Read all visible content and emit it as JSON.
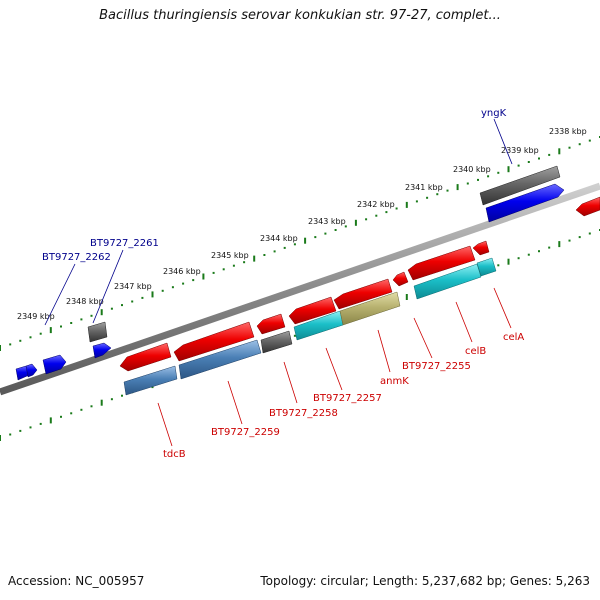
{
  "title": "Bacillus thuringiensis serovar konkukian str. 97-27, complet...",
  "footer": {
    "accession": "Accession: NC_005957",
    "summary": "Topology: circular; Length: 5,237,682 bp; Genes: 5,263"
  },
  "kbp_labels": [
    "2338 kbp",
    "2339 kbp",
    "2340 kbp",
    "2341 kbp",
    "2342 kbp",
    "2343 kbp",
    "2344 kbp",
    "2345 kbp",
    "2346 kbp",
    "2347 kbp",
    "2348 kbp",
    "2349 kbp"
  ],
  "gene_labels": {
    "yngK": "yngK",
    "bt2261": "BT9727_2261",
    "bt2262": "BT9727_2262",
    "tdcB": "tdcB",
    "bt2259": "BT9727_2259",
    "bt2258": "BT9727_2258",
    "bt2257": "BT9727_2257",
    "anmK": "anmK",
    "bt2255": "BT9727_2255",
    "celB": "celB",
    "celA": "celA"
  },
  "colors": {
    "forward_gene": "#1010e0",
    "forward_gray": "#666666",
    "reverse_gene": "#e00000",
    "cds_teal": "#1bbfc8",
    "cds_steel": "#4a7fb5",
    "cds_olive": "#b8b270",
    "backbone": "#888888",
    "tick_green": "#1a7a1a",
    "label_blue": "#00008b",
    "label_red": "#cc0000"
  }
}
